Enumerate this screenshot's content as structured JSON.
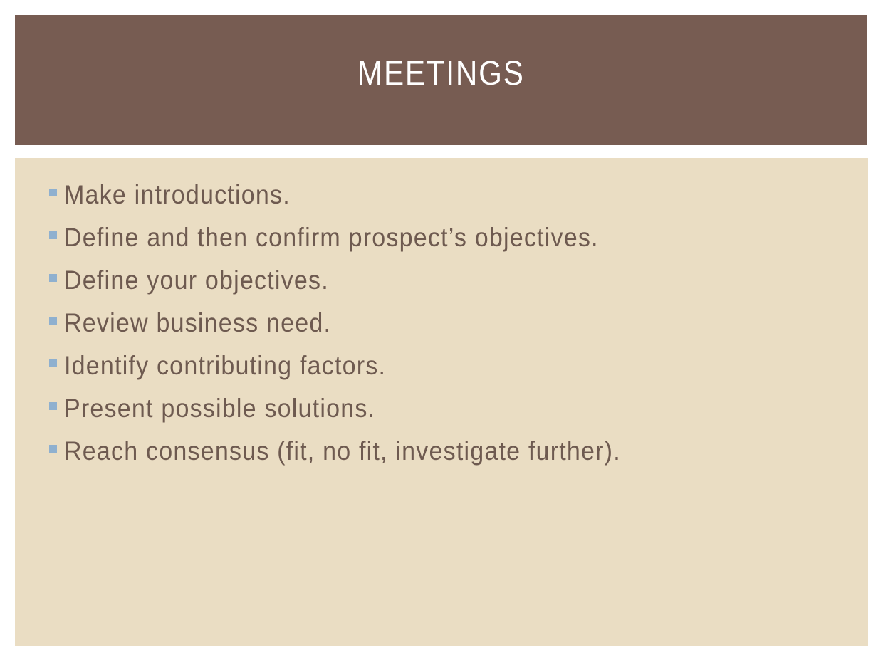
{
  "slide": {
    "title": "MEETINGS",
    "bullets": [
      "Make introductions.",
      "Define and then confirm prospect’s objectives.",
      "Define your objectives.",
      "Review business need.",
      "Identify contributing factors.",
      "Present possible solutions.",
      "Reach consensus (fit, no fit, investigate further)."
    ]
  },
  "colors": {
    "title_bar": "#775c52",
    "title_text": "#ffffff",
    "content_bg": "#eaddc3",
    "body_text": "#6e5a50",
    "bullet_marker": "#8fb0cf"
  },
  "icons": {
    "bullet": "square-bullet-icon"
  }
}
